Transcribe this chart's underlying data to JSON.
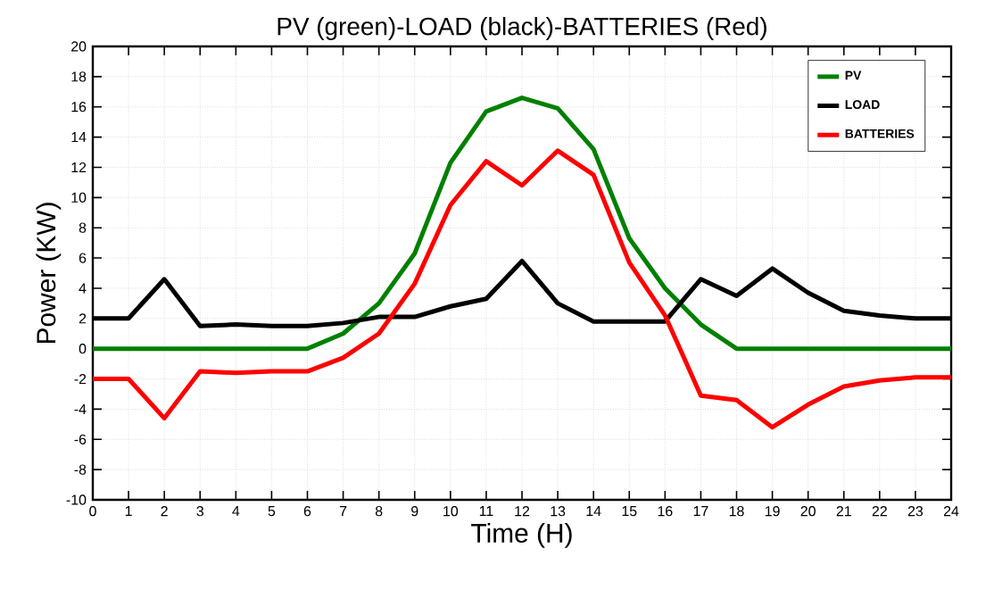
{
  "chart_data": {
    "type": "line",
    "title": "PV (green)-LOAD (black)-BATTERIES (Red)",
    "xlabel": "Time (H)",
    "ylabel": "Power (KW)",
    "x": [
      0,
      1,
      2,
      3,
      4,
      5,
      6,
      7,
      8,
      9,
      10,
      11,
      12,
      13,
      14,
      15,
      16,
      17,
      18,
      19,
      20,
      21,
      22,
      23,
      24
    ],
    "series": [
      {
        "name": "PV",
        "color": "#008000",
        "values": [
          0,
          0,
          0,
          0,
          0,
          0,
          0,
          1,
          3,
          6.3,
          12.3,
          15.7,
          16.6,
          15.9,
          13.2,
          7.3,
          4,
          1.6,
          0,
          0,
          0,
          0,
          0,
          0,
          0
        ]
      },
      {
        "name": "LOAD",
        "color": "#000000",
        "values": [
          2,
          2,
          4.6,
          1.5,
          1.6,
          1.5,
          1.5,
          1.7,
          2.1,
          2.1,
          2.8,
          3.3,
          5.8,
          3,
          1.8,
          1.8,
          1.8,
          4.6,
          3.5,
          5.3,
          3.7,
          2.5,
          2.2,
          2,
          2
        ]
      },
      {
        "name": "BATTERIES",
        "color": "#ff0000",
        "values": [
          -2,
          -2,
          -4.6,
          -1.5,
          -1.6,
          -1.5,
          -1.5,
          -0.6,
          1,
          4.3,
          9.5,
          12.4,
          10.8,
          13.1,
          11.5,
          5.7,
          2.2,
          -3.1,
          -3.4,
          -5.2,
          -3.7,
          -2.5,
          -2.1,
          -1.9,
          -1.9
        ]
      }
    ],
    "xlim": [
      0,
      24
    ],
    "xticks": [
      0,
      1,
      2,
      3,
      4,
      5,
      6,
      7,
      8,
      9,
      10,
      11,
      12,
      13,
      14,
      15,
      16,
      17,
      18,
      19,
      20,
      21,
      22,
      23,
      24
    ],
    "ylim": [
      -10,
      20
    ],
    "yticks": [
      -10,
      -8,
      -6,
      -4,
      -2,
      0,
      2,
      4,
      6,
      8,
      10,
      12,
      14,
      16,
      18,
      20
    ],
    "grid": true,
    "legend": "top right",
    "marker": "none",
    "line_style": "solid"
  }
}
